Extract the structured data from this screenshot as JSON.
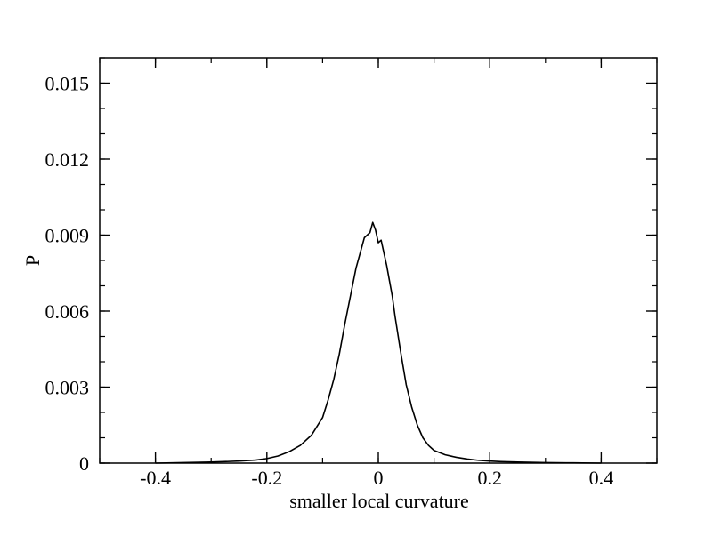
{
  "chart_data": {
    "type": "line",
    "title": "",
    "xlabel": "smaller local curvature",
    "ylabel": "P",
    "xlim": [
      -0.5,
      0.5
    ],
    "ylim": [
      0,
      0.016
    ],
    "x_ticks": [
      -0.4,
      -0.2,
      0,
      0.2,
      0.4
    ],
    "x_tick_labels": [
      "-0.4",
      "-0.2",
      "0",
      "0.2",
      "0.4"
    ],
    "y_ticks": [
      0,
      0.003,
      0.006,
      0.009,
      0.012,
      0.015
    ],
    "y_tick_labels": [
      "0",
      "0.003",
      "0.006",
      "0.009",
      "0.012",
      "0.015"
    ],
    "grid": false,
    "legend": "none",
    "series": [
      {
        "color": "#000000",
        "x": [
          -0.4,
          -0.35,
          -0.3,
          -0.25,
          -0.22,
          -0.2,
          -0.18,
          -0.16,
          -0.14,
          -0.12,
          -0.1,
          -0.09,
          -0.08,
          -0.07,
          -0.06,
          -0.05,
          -0.04,
          -0.035,
          -0.03,
          -0.025,
          -0.02,
          -0.015,
          -0.01,
          -0.005,
          0.0,
          0.005,
          0.01,
          0.015,
          0.02,
          0.025,
          0.03,
          0.035,
          0.04,
          0.05,
          0.06,
          0.07,
          0.08,
          0.09,
          0.1,
          0.12,
          0.14,
          0.16,
          0.18,
          0.2,
          0.22,
          0.25,
          0.3,
          0.35,
          0.4
        ],
        "y": [
          0.0,
          2e-05,
          4e-05,
          8e-05,
          0.00012,
          0.00018,
          0.00028,
          0.00045,
          0.0007,
          0.0011,
          0.0018,
          0.0025,
          0.0033,
          0.0043,
          0.0055,
          0.0066,
          0.0077,
          0.0081,
          0.0085,
          0.0089,
          0.009,
          0.0091,
          0.0095,
          0.0092,
          0.0087,
          0.0088,
          0.0083,
          0.0078,
          0.0072,
          0.0066,
          0.0058,
          0.0051,
          0.0044,
          0.0031,
          0.0022,
          0.0015,
          0.001,
          0.0007,
          0.0005,
          0.00033,
          0.00023,
          0.00016,
          0.00011,
          8e-05,
          6e-05,
          4e-05,
          2e-05,
          1e-05,
          0.0
        ]
      }
    ]
  }
}
